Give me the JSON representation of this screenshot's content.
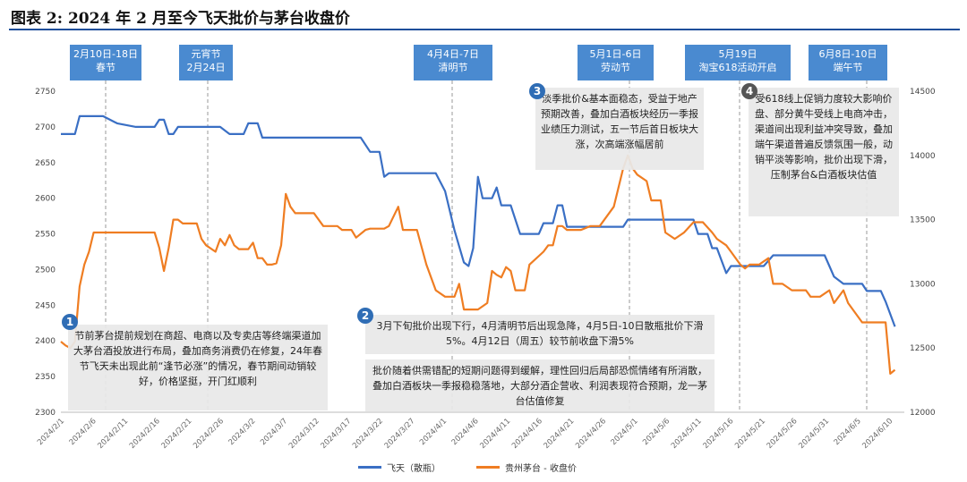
{
  "title": "图表 2: 2024 年 2 月至今飞天批价与茅台收盘价",
  "events": [
    {
      "label": "2月10日-18日\n春节"
    },
    {
      "label": "元宵节\n2月24日"
    },
    {
      "label": "4月4日-7日\n清明节"
    },
    {
      "label": "5月1日-6日\n劳动节"
    },
    {
      "label": "5月19日\n淘宝618活动开启"
    },
    {
      "label": "6月8日-10日\n端午节"
    }
  ],
  "notes": [
    {
      "num": "1",
      "text": "节前茅台提前规划在商超、电商以及专卖店等终端渠道加大茅台酒投放进行布局，叠加商务消费仍在修复，24年春节飞天未出现此前“逢节必涨”的情况，春节期间动销较好，价格坚挺，开门红顺利"
    },
    {
      "num": "2",
      "text": "3月下旬批价出现下行，4月清明节后出现急降，4月5日-10日散瓶批价下滑5%。4月12日（周五）较节前收盘下滑5%"
    },
    {
      "num": "",
      "text": "批价随着供需错配的短期问题得到缓解，理性回归后局部恐慌情绪有所消散，叠加白酒板块一季报稳稳落地，大部分酒企营收、利润表现符合预期，龙一茅台估值修复"
    },
    {
      "num": "3",
      "text": "淡季批价&基本面稳态，受益于地产预期改善，叠加白酒板块经历一季报业绩压力测试，五一节后首日板块大涨，次高端涨幅居前"
    },
    {
      "num": "4",
      "text": "受618线上促销力度较大影响价盘、部分黄牛受线上电商冲击，渠道间出现利益冲突导致，叠加端午渠道普遍反馈氛围一般，动销平淡等影响，批价出现下滑，压制茅台&白酒板块估值"
    }
  ],
  "legend": {
    "feitian": "飞天（散瓶）",
    "moutai": "贵州茅台 - 收盘价"
  },
  "chart_data": {
    "type": "line",
    "x_ticks": [
      "2024/2/1",
      "2024/2/6",
      "2024/2/11",
      "2024/2/16",
      "2024/2/21",
      "2024/2/26",
      "2024/3/2",
      "2024/3/7",
      "2024/3/12",
      "2024/3/17",
      "2024/3/22",
      "2024/3/27",
      "2024/4/1",
      "2024/4/6",
      "2024/4/11",
      "2024/4/16",
      "2024/4/21",
      "2024/4/26",
      "2024/5/1",
      "2024/5/6",
      "2024/5/11",
      "2024/5/16",
      "2024/5/21",
      "2024/5/26",
      "2024/5/31",
      "2024/6/5",
      "2024/6/10"
    ],
    "y_left": {
      "min": 2300,
      "max": 2750,
      "step": 50
    },
    "y_right": {
      "min": 12000,
      "max": 14500,
      "step": 500
    },
    "series": [
      {
        "name": "飞天（散瓶）",
        "axis": "left",
        "color": "#3a6fc4",
        "points": [
          [
            0,
            2690
          ],
          [
            3,
            2690
          ],
          [
            4,
            2715
          ],
          [
            9,
            2715
          ],
          [
            12,
            2705
          ],
          [
            16,
            2700
          ],
          [
            20,
            2700
          ],
          [
            21,
            2710
          ],
          [
            22,
            2710
          ],
          [
            23,
            2690
          ],
          [
            24,
            2690
          ],
          [
            25,
            2700
          ],
          [
            34,
            2700
          ],
          [
            36,
            2690
          ],
          [
            39,
            2690
          ],
          [
            40,
            2705
          ],
          [
            42,
            2705
          ],
          [
            43,
            2685
          ],
          [
            64,
            2685
          ],
          [
            66,
            2665
          ],
          [
            68,
            2665
          ],
          [
            69,
            2630
          ],
          [
            70,
            2635
          ],
          [
            80,
            2635
          ],
          [
            82,
            2610
          ],
          [
            84,
            2555
          ],
          [
            86,
            2510
          ],
          [
            87,
            2505
          ],
          [
            88,
            2530
          ],
          [
            89,
            2630
          ],
          [
            90,
            2600
          ],
          [
            92,
            2600
          ],
          [
            93,
            2615
          ],
          [
            94,
            2590
          ],
          [
            96,
            2590
          ],
          [
            98,
            2550
          ],
          [
            102,
            2550
          ],
          [
            103,
            2565
          ],
          [
            105,
            2565
          ],
          [
            106,
            2590
          ],
          [
            107,
            2590
          ],
          [
            108,
            2560
          ],
          [
            120,
            2560
          ],
          [
            121,
            2570
          ],
          [
            135,
            2570
          ],
          [
            136,
            2550
          ],
          [
            138,
            2550
          ],
          [
            139,
            2530
          ],
          [
            140,
            2530
          ],
          [
            142,
            2495
          ],
          [
            143,
            2505
          ],
          [
            150,
            2505
          ],
          [
            152,
            2520
          ],
          [
            163,
            2520
          ],
          [
            164,
            2505
          ],
          [
            165,
            2490
          ],
          [
            167,
            2480
          ],
          [
            171,
            2480
          ],
          [
            172,
            2470
          ],
          [
            175,
            2470
          ],
          [
            176,
            2455
          ],
          [
            178,
            2420
          ]
        ]
      },
      {
        "name": "贵州茅台 - 收盘价",
        "axis": "right",
        "color": "#ef7d22",
        "points": [
          [
            0,
            12550
          ],
          [
            1,
            12520
          ],
          [
            2,
            12500
          ],
          [
            3,
            12550
          ],
          [
            4,
            12980
          ],
          [
            5,
            13150
          ],
          [
            6,
            13250
          ],
          [
            7,
            13400
          ],
          [
            8,
            13400
          ],
          [
            13,
            13400
          ],
          [
            14,
            13400
          ],
          [
            20,
            13400
          ],
          [
            21,
            13280
          ],
          [
            22,
            13100
          ],
          [
            23,
            13280
          ],
          [
            24,
            13500
          ],
          [
            25,
            13500
          ],
          [
            26,
            13470
          ],
          [
            29,
            13470
          ],
          [
            30,
            13350
          ],
          [
            31,
            13300
          ],
          [
            33,
            13250
          ],
          [
            34,
            13350
          ],
          [
            35,
            13300
          ],
          [
            36,
            13380
          ],
          [
            37,
            13300
          ],
          [
            38,
            13270
          ],
          [
            40,
            13270
          ],
          [
            41,
            13320
          ],
          [
            42,
            13200
          ],
          [
            43,
            13200
          ],
          [
            44,
            13150
          ],
          [
            45,
            13150
          ],
          [
            46,
            13160
          ],
          [
            47,
            13300
          ],
          [
            48,
            13700
          ],
          [
            49,
            13600
          ],
          [
            50,
            13550
          ],
          [
            54,
            13550
          ],
          [
            56,
            13450
          ],
          [
            59,
            13450
          ],
          [
            60,
            13420
          ],
          [
            62,
            13420
          ],
          [
            63,
            13360
          ],
          [
            65,
            13420
          ],
          [
            66,
            13430
          ],
          [
            69,
            13430
          ],
          [
            70,
            13450
          ],
          [
            72,
            13600
          ],
          [
            73,
            13420
          ],
          [
            76,
            13420
          ],
          [
            78,
            13150
          ],
          [
            80,
            12950
          ],
          [
            82,
            12900
          ],
          [
            84,
            12900
          ],
          [
            85,
            13000
          ],
          [
            86,
            12800
          ],
          [
            88,
            12800
          ],
          [
            89,
            12800
          ],
          [
            91,
            12850
          ],
          [
            92,
            13100
          ],
          [
            93,
            13070
          ],
          [
            94,
            13050
          ],
          [
            95,
            13130
          ],
          [
            96,
            13100
          ],
          [
            97,
            12950
          ],
          [
            99,
            12950
          ],
          [
            100,
            13150
          ],
          [
            103,
            13250
          ],
          [
            104,
            13300
          ],
          [
            105,
            13300
          ],
          [
            106,
            13450
          ],
          [
            107,
            13450
          ],
          [
            108,
            13420
          ],
          [
            111,
            13420
          ],
          [
            113,
            13450
          ],
          [
            115,
            13450
          ],
          [
            118,
            13600
          ],
          [
            120,
            13900
          ],
          [
            121,
            14000
          ],
          [
            122,
            13900
          ],
          [
            123,
            13850
          ],
          [
            125,
            13800
          ],
          [
            126,
            13650
          ],
          [
            127,
            13650
          ],
          [
            128,
            13650
          ],
          [
            129,
            13400
          ],
          [
            131,
            13350
          ],
          [
            133,
            13400
          ],
          [
            135,
            13480
          ],
          [
            137,
            13480
          ],
          [
            139,
            13400
          ],
          [
            140,
            13350
          ],
          [
            142,
            13300
          ],
          [
            143,
            13250
          ],
          [
            145,
            13150
          ],
          [
            146,
            13120
          ],
          [
            147,
            13150
          ],
          [
            149,
            13150
          ],
          [
            151,
            13200
          ],
          [
            152,
            13000
          ],
          [
            154,
            13000
          ],
          [
            156,
            12950
          ],
          [
            158,
            12950
          ],
          [
            159,
            12950
          ],
          [
            160,
            12900
          ],
          [
            162,
            12900
          ],
          [
            164,
            12950
          ],
          [
            165,
            12850
          ],
          [
            167,
            12950
          ],
          [
            168,
            12850
          ],
          [
            171,
            12700
          ],
          [
            176,
            12700
          ],
          [
            177,
            12300
          ],
          [
            178,
            12330
          ]
        ]
      }
    ]
  }
}
